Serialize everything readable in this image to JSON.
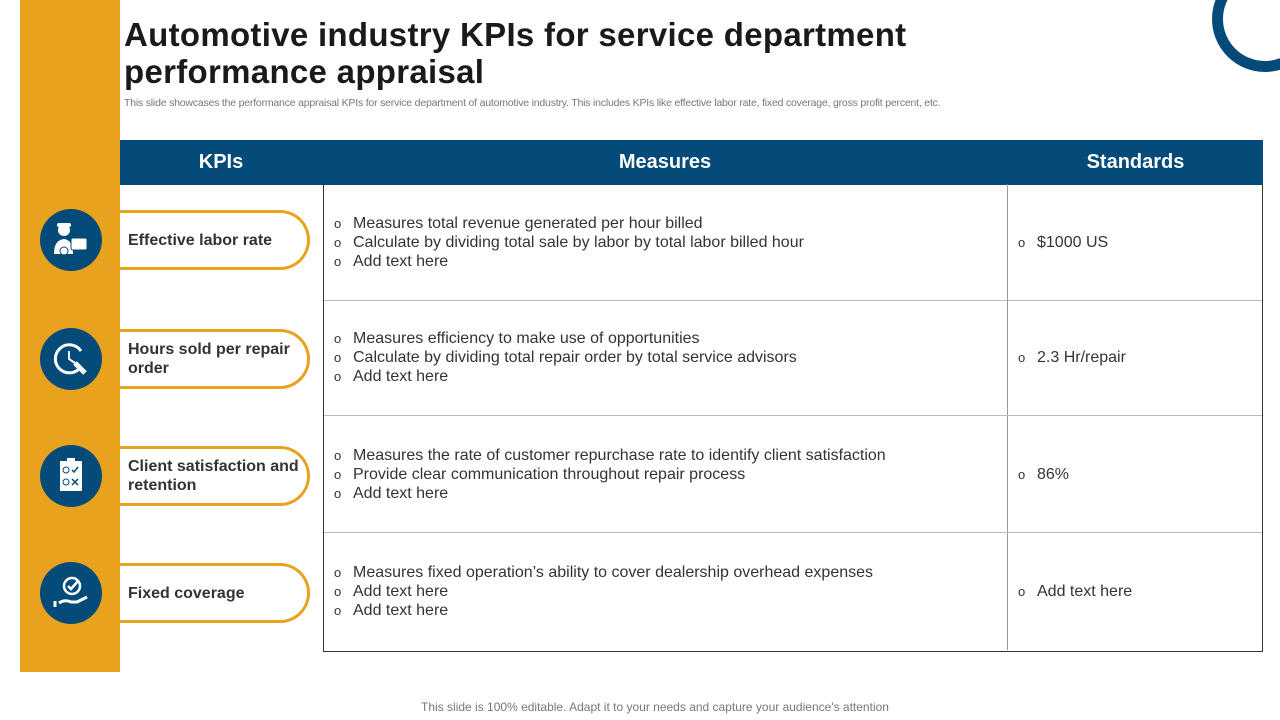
{
  "title": "Automotive industry KPIs for service department performance appraisal",
  "subtitle": "This slide showcases the performance appraisal KPIs for service department of automotive industry. This includes KPIs like effective labor rate, fixed coverage, gross profit percent, etc.",
  "headers": {
    "kpis": "KPIs",
    "measures": "Measures",
    "standards": "Standards"
  },
  "rows": [
    {
      "kpi": "Effective labor rate",
      "icon": "mechanic-briefcase-icon",
      "measures": [
        "Measures total revenue generated per hour billed",
        "Calculate by dividing total sale by labor by total labor billed hour",
        "Add text here"
      ],
      "standard": "$1000 US"
    },
    {
      "kpi": "Hours sold per repair order",
      "icon": "clock-hand-icon",
      "measures": [
        "Measures efficiency to make use of opportunities",
        "Calculate by dividing total repair order by total service advisors",
        "Add text here"
      ],
      "standard": "2.3 Hr/repair"
    },
    {
      "kpi": "Client satisfaction and retention",
      "icon": "clipboard-feedback-icon",
      "measures": [
        "Measures the rate of customer repurchase rate to identify client satisfaction",
        "Provide clear communication throughout  repair process",
        "Add text here"
      ],
      "standard": "86%"
    },
    {
      "kpi": "Fixed coverage",
      "icon": "hand-check-icon",
      "measures": [
        "Measures fixed operation’s ability to cover dealership overhead expenses",
        "Add text here",
        "Add text here"
      ],
      "standard": "Add text here"
    }
  ],
  "footer": "This slide is 100% editable. Adapt it to your needs and capture your audience's attention",
  "colors": {
    "accent": "#E8A21E",
    "primary": "#044B7A"
  }
}
